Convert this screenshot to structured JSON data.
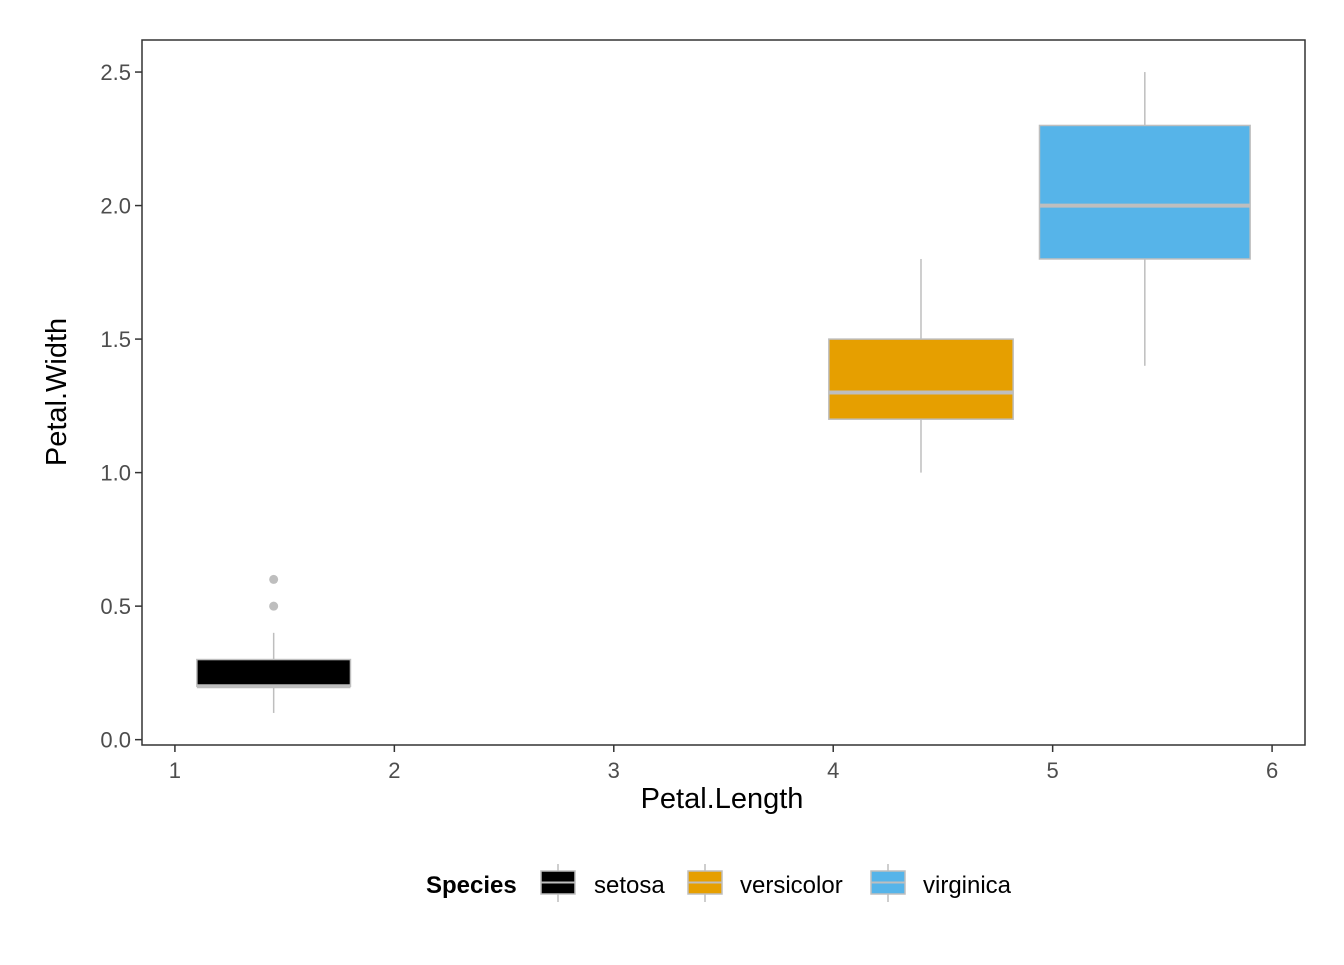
{
  "chart_data": {
    "type": "boxplot",
    "xlabel": "Petal.Length",
    "ylabel": "Petal.Width",
    "xlim": [
      0.85,
      6.15
    ],
    "ylim": [
      -0.02,
      2.62
    ],
    "x_ticks": [
      1,
      2,
      3,
      4,
      5,
      6
    ],
    "y_ticks": [
      0.0,
      0.5,
      1.0,
      1.5,
      2.0,
      2.5
    ],
    "y_tick_labels": [
      "0.0",
      "0.5",
      "1.0",
      "1.5",
      "2.0",
      "2.5"
    ],
    "grid": false,
    "legend": {
      "title": "Species",
      "position": "bottom",
      "entries": [
        "setosa",
        "versicolor",
        "virginica"
      ]
    },
    "series": [
      {
        "name": "setosa",
        "color": "#000000",
        "x_center": 1.45,
        "x_min": 1.1,
        "x_max": 1.8,
        "whisker_low": 0.1,
        "q1": 0.2,
        "median": 0.2,
        "q3": 0.3,
        "whisker_high": 0.4,
        "outliers": [
          0.5,
          0.6
        ]
      },
      {
        "name": "versicolor",
        "color": "#E69F00",
        "x_center": 4.4,
        "x_min": 3.98,
        "x_max": 4.82,
        "whisker_low": 1.0,
        "q1": 1.2,
        "median": 1.3,
        "q3": 1.5,
        "whisker_high": 1.8,
        "outliers": []
      },
      {
        "name": "virginica",
        "color": "#56B4E9",
        "x_center": 5.42,
        "x_min": 4.94,
        "x_max": 5.9,
        "whisker_low": 1.4,
        "q1": 1.8,
        "median": 2.0,
        "q3": 2.3,
        "whisker_high": 2.5,
        "outliers": []
      }
    ],
    "outline_color": "#BEBEBE"
  }
}
